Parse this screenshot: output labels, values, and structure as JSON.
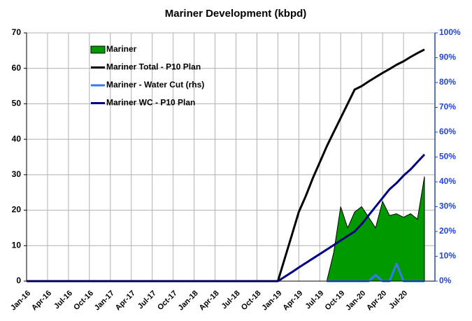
{
  "chart_data": {
    "type": "combo",
    "title": "Mariner Development (kbpd)",
    "categories": [
      "Jan-16",
      null,
      null,
      "Apr-16",
      null,
      null,
      "Jul-16",
      null,
      null,
      "Oct-16",
      null,
      null,
      "Jan-17",
      null,
      null,
      "Apr-17",
      null,
      null,
      "Jul-17",
      null,
      null,
      "Oct-17",
      null,
      null,
      "Jan-18",
      null,
      null,
      "Apr-18",
      null,
      null,
      "Jul-18",
      null,
      null,
      "Oct-18",
      null,
      null,
      "Jan-19",
      null,
      null,
      "Apr-19",
      null,
      null,
      "Jul-19",
      null,
      null,
      "Oct-19",
      null,
      null,
      "Jan-20",
      null,
      null,
      "Apr-20",
      null,
      null,
      "Jul-20",
      null,
      null,
      null
    ],
    "ylim": [
      0,
      70
    ],
    "yticks": [
      0,
      10,
      20,
      30,
      40,
      50,
      60,
      70
    ],
    "y2lim": [
      0,
      100
    ],
    "y2ticks": [
      {
        "value": 0,
        "label": "0%"
      },
      {
        "value": 10,
        "label": "10%"
      },
      {
        "value": 20,
        "label": "20%"
      },
      {
        "value": 30,
        "label": "30%"
      },
      {
        "value": 40,
        "label": "40%"
      },
      {
        "value": 50,
        "label": "50%"
      },
      {
        "value": 60,
        "label": "60%"
      },
      {
        "value": 70,
        "label": "70%"
      },
      {
        "value": 80,
        "label": "80%"
      },
      {
        "value": 90,
        "label": "90%"
      },
      {
        "value": 100,
        "label": "100%"
      }
    ],
    "grid": true,
    "legend": "top-left",
    "series": [
      {
        "name": "Mariner",
        "type": "area",
        "color": "#009900",
        "values": [
          0,
          0,
          0,
          0,
          0,
          0,
          0,
          0,
          0,
          0,
          0,
          0,
          0,
          0,
          0,
          0,
          0,
          0,
          0,
          0,
          0,
          0,
          0,
          0,
          0,
          0,
          0,
          0,
          0,
          0,
          0,
          0,
          0,
          0,
          0,
          0,
          0,
          0,
          0,
          0,
          0,
          0,
          0,
          0,
          8,
          21,
          15,
          19.5,
          21,
          18,
          15,
          22.5,
          18.5,
          19,
          18,
          19,
          17.5,
          29.5
        ]
      },
      {
        "name": "Mariner Total - P10 Plan",
        "type": "line",
        "color": "#000000",
        "values": [
          0,
          0,
          0,
          0,
          0,
          0,
          0,
          0,
          0,
          0,
          0,
          0,
          0,
          0,
          0,
          0,
          0,
          0,
          0,
          0,
          0,
          0,
          0,
          0,
          0,
          0,
          0,
          0,
          0,
          0,
          0,
          0,
          0,
          0,
          0,
          0,
          0,
          6.5,
          13,
          19.5,
          24,
          29,
          33.5,
          38,
          42,
          46,
          50,
          54,
          55,
          56.3,
          57.5,
          58.7,
          59.8,
          61,
          62,
          63.2,
          64.3,
          65.3
        ]
      },
      {
        "name": "Mariner - Water Cut (rhs)",
        "type": "line",
        "color": "#3a78f0",
        "axis": "y2",
        "values": [
          null,
          null,
          null,
          null,
          null,
          null,
          null,
          null,
          null,
          null,
          null,
          null,
          null,
          null,
          null,
          null,
          null,
          null,
          null,
          null,
          null,
          null,
          null,
          null,
          null,
          null,
          null,
          null,
          null,
          null,
          null,
          null,
          null,
          null,
          null,
          null,
          null,
          null,
          null,
          null,
          null,
          null,
          null,
          0,
          0,
          0,
          0,
          0,
          0,
          0,
          2.5,
          0,
          0,
          7,
          0,
          0,
          0,
          0
        ]
      },
      {
        "name": "Mariner WC - P10 Plan",
        "type": "line",
        "color": "#000080",
        "axis": "y2",
        "values": [
          0,
          0,
          0,
          0,
          0,
          0,
          0,
          0,
          0,
          0,
          0,
          0,
          0,
          0,
          0,
          0,
          0,
          0,
          0,
          0,
          0,
          0,
          0,
          0,
          0,
          0,
          0,
          0,
          0,
          0,
          0,
          0,
          0,
          0,
          0,
          0,
          0,
          1.8,
          3.6,
          5.5,
          7.3,
          9.1,
          10.9,
          12.7,
          14.5,
          16.4,
          18.2,
          20,
          23,
          26.5,
          30,
          33.5,
          37,
          39.5,
          42.5,
          45,
          48,
          51
        ]
      }
    ]
  }
}
